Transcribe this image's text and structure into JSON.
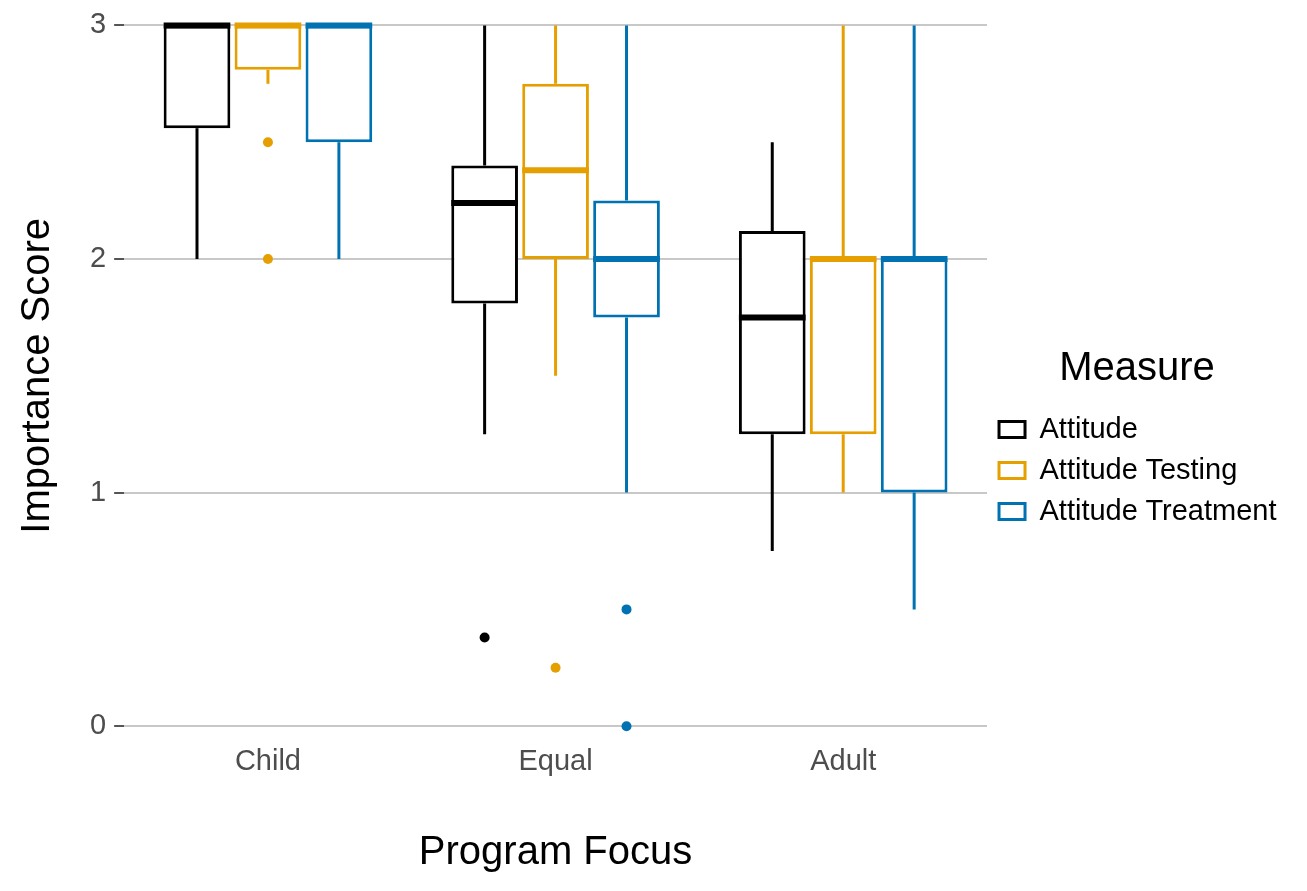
{
  "chart_data": {
    "type": "box",
    "xlabel": "Program Focus",
    "ylabel": "Importance Score",
    "legend_title": "Measure",
    "categories": [
      "Child",
      "Equal",
      "Adult"
    ],
    "ylim": [
      0,
      3
    ],
    "yticks": [
      0,
      1,
      2,
      3
    ],
    "grid": "y",
    "legend": "right",
    "series": [
      {
        "name": "Attitude",
        "color": "#000000",
        "boxes": [
          {
            "low": 2,
            "q1": 2.56,
            "median": 3,
            "q3": 3,
            "high": 3
          },
          {
            "low": 1.25,
            "q1": 1.81,
            "median": 2.24,
            "q3": 2.4,
            "high": 3,
            "outliers": [
              0.38
            ]
          },
          {
            "low": 0.75,
            "q1": 1.25,
            "median": 1.75,
            "q3": 2.12,
            "high": 2.5
          }
        ]
      },
      {
        "name": "Attitude Testing",
        "color": "#e69f00",
        "boxes": [
          {
            "low": 2.75,
            "q1": 2.81,
            "median": 3,
            "q3": 3,
            "high": 3,
            "outliers": [
              2.5,
              2
            ]
          },
          {
            "low": 1.5,
            "q1": 2,
            "median": 2.38,
            "q3": 2.75,
            "high": 3,
            "outliers": [
              0.25
            ]
          },
          {
            "low": 1,
            "q1": 1.25,
            "median": 2,
            "q3": 2,
            "high": 3
          }
        ]
      },
      {
        "name": "Attitude Treatment",
        "color": "#0072b2",
        "boxes": [
          {
            "low": 2,
            "q1": 2.5,
            "median": 3,
            "q3": 3,
            "high": 3
          },
          {
            "low": 1,
            "q1": 1.75,
            "median": 2,
            "q3": 2.25,
            "high": 3,
            "outliers": [
              0.5,
              0
            ]
          },
          {
            "low": 0.5,
            "q1": 1,
            "median": 2,
            "q3": 2,
            "high": 3
          }
        ]
      }
    ]
  }
}
